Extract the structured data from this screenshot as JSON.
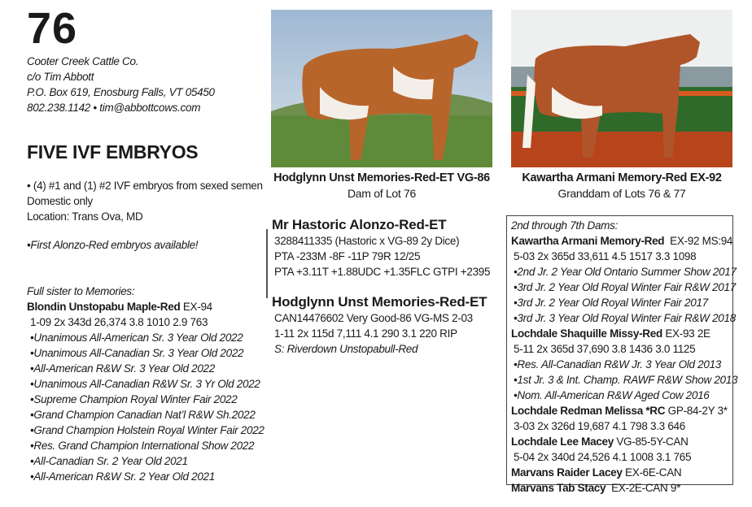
{
  "lot_number": "76",
  "consignor": [
    "Cooter Creek Cattle Co.",
    "c/o Tim Abbott",
    "P.O. Box 619, Enosburg Falls, VT  05450",
    "802.238.1142  •  tim@abbottcows.com"
  ],
  "offering": {
    "title": "FIVE IVF EMBRYOS",
    "lines": [
      "• (4) #1 and (1) #2 IVF embryos from sexed semen",
      "Domestic only",
      "Location:  Trans Ova, MD"
    ],
    "note": "•First Alonzo-Red embryos available!"
  },
  "full_sister": {
    "heading": "Full sister to Memories:",
    "name": "Blondin Unstopabu Maple-Red",
    "score": "EX-94",
    "record": "1-09  2x  343d  26,374  3.8  1010  2.9  763",
    "awards": [
      "•Unanimous All-American Sr. 3 Year Old 2022",
      "•Unanimous All-Canadian Sr. 3 Year Old 2022",
      "•All-American R&W Sr. 3 Year Old 2022",
      "•Unanimous All-Canadian R&W Sr. 3 Yr Old 2022",
      "•Supreme Champion Royal Winter Fair 2022",
      "•Grand Champion Canadian Nat’l R&W Sh.2022",
      "•Grand Champion Holstein Royal Winter Fair 2022",
      "•Res. Grand Champion International Show 2022",
      "•All-Canadian Sr. 2 Year Old 2021",
      "•All-American R&W Sr. 2 Year Old 2021"
    ]
  },
  "photos": [
    {
      "name": "Hodglynn Unst Memories-Red-ET VG-86",
      "caption": "Dam of Lot  76",
      "colors": {
        "sky": "#b9cde0",
        "grass": "#5f8a3a",
        "coat": "#b8652c"
      }
    },
    {
      "name": "Kawartha Armani Memory-Red EX-92",
      "caption": "Granddam of Lots 76 & 77",
      "colors": {
        "sky": "#eef0ef",
        "grass": "#2f6a2a",
        "coat": "#b0552a",
        "ground": "#b8441c"
      }
    }
  ],
  "sire": {
    "name": "Mr Hastoric Alonzo-Red-ET",
    "lines": [
      "3288411335  (Hastoric x VG-89 2y Dice)",
      "PTA -233M -8F -11P 79R 12/25",
      "PTA +3.11T +1.88UDC +1.35FLC GTPI +2395"
    ]
  },
  "dam": {
    "name": "Hodglynn Unst Memories-Red-ET",
    "lines": [
      "CAN14476602    Very Good-86 VG-MS  2-03",
      "1-11  2x  115d  7,111 4.1  290  3.1  220 RIP"
    ],
    "sire_line": "S:  Riverdown Unstopabull-Red"
  },
  "dams": {
    "heading": "2nd through 7th Dams:",
    "entries": [
      {
        "name": "Kawartha Armani Memory-Red",
        "score": "  EX-92 MS:94",
        "lines": [
          "5-03  2x  365d  33,611  4.5  1517  3.3  1098"
        ],
        "awards": [
          "•2nd Jr. 2 Year Old Ontario Summer Show 2017",
          "•3rd Jr. 2 Year Old Royal Winter Fair R&W 2017",
          "•3rd Jr. 2 Year Old Royal Winter Fair 2017",
          "•3rd Jr. 3 Year Old Royal Winter Fair R&W 2018"
        ]
      },
      {
        "name": "Lochdale Shaquille Missy-Red",
        "score": " EX-93 2E",
        "lines": [
          "5-11  2x  365d  37,690  3.8  1436  3.0  1125"
        ],
        "awards": [
          "•Res. All-Canadian R&W Jr. 3 Year Old 2013",
          "•1st Jr. 3 & Int. Champ. RAWF R&W Show 2013",
          "•Nom. All-American R&W Aged Cow 2016"
        ]
      },
      {
        "name": "Lochdale Redman Melissa *RC",
        "score": " GP-84-2Y 3*",
        "lines": [
          "3-03  2x  326d  19,687  4.1  798  3.3  646"
        ],
        "awards": []
      },
      {
        "name": "Lochdale Lee Macey",
        "score": " VG-85-5Y-CAN",
        "lines": [
          "5-04  2x  340d  24,526  4.1  1008  3.1   765"
        ],
        "awards": []
      },
      {
        "name": "Marvans Raider Lacey",
        "score": " EX-6E-CAN",
        "lines": [],
        "awards": []
      },
      {
        "name": "Marvans Tab Stacy",
        "score": "  EX-2E-CAN 9*",
        "lines": [],
        "awards": []
      }
    ]
  }
}
